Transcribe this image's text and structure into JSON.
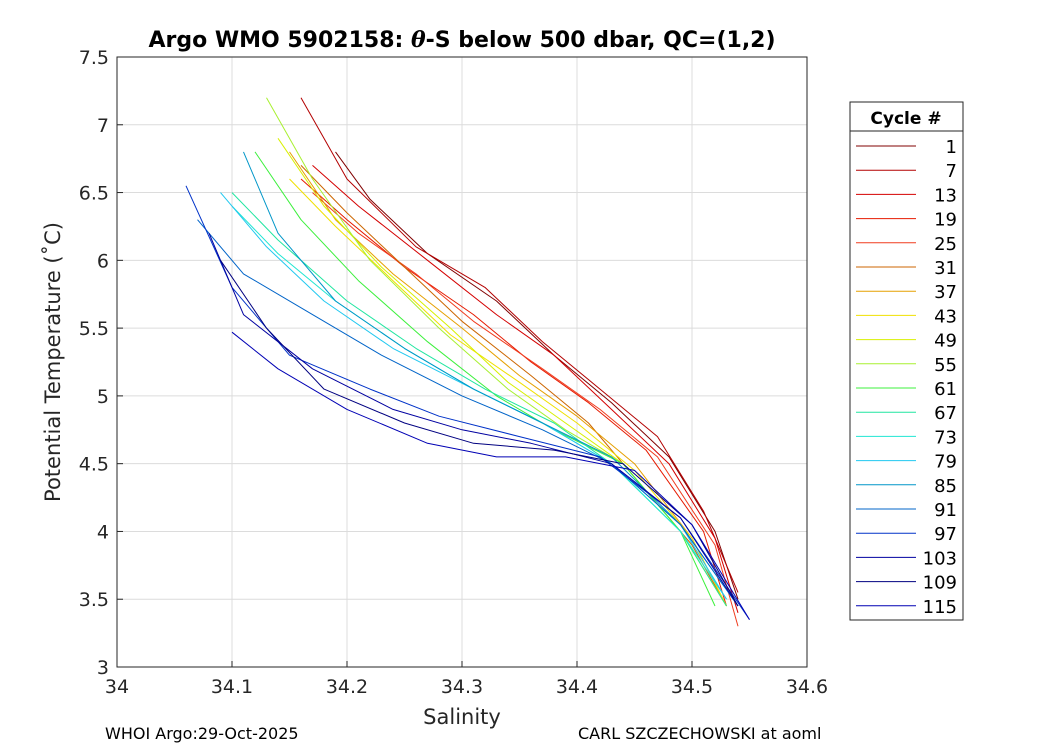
{
  "chart_data": {
    "type": "line",
    "title_prefix": "Argo WMO 5902158: ",
    "title_symbol": "θ",
    "title_suffix": "-S below 500 dbar,  QC=(1,2)",
    "xlabel": "Salinity",
    "ylabel": "Potential Temperature (˚C)",
    "xlim": [
      34,
      34.6
    ],
    "ylim": [
      3,
      7.5
    ],
    "xticks": [
      "34",
      "34.1",
      "34.2",
      "34.3",
      "34.4",
      "34.5",
      "34.6"
    ],
    "yticks": [
      "3",
      "3.5",
      "4",
      "4.5",
      "5",
      "5.5",
      "6",
      "6.5",
      "7",
      "7.5"
    ],
    "grid": true,
    "legend_title": "Cycle #",
    "legend_position": "outside-right",
    "legend": [
      {
        "label": "1",
        "color": "#800000"
      },
      {
        "label": "7",
        "color": "#b30000"
      },
      {
        "label": "13",
        "color": "#d40000"
      },
      {
        "label": "19",
        "color": "#e61a00"
      },
      {
        "label": "25",
        "color": "#f03c1e"
      },
      {
        "label": "31",
        "color": "#cc6600"
      },
      {
        "label": "37",
        "color": "#e6a000"
      },
      {
        "label": "43",
        "color": "#f0e000"
      },
      {
        "label": "49",
        "color": "#d8f000"
      },
      {
        "label": "55",
        "color": "#a8f030"
      },
      {
        "label": "61",
        "color": "#3cf03c"
      },
      {
        "label": "67",
        "color": "#20e6a0"
      },
      {
        "label": "73",
        "color": "#20e6d2"
      },
      {
        "label": "79",
        "color": "#20c8f0"
      },
      {
        "label": "85",
        "color": "#0096c8"
      },
      {
        "label": "91",
        "color": "#0064c8"
      },
      {
        "label": "97",
        "color": "#0032c8"
      },
      {
        "label": "103",
        "color": "#0000a0"
      },
      {
        "label": "109",
        "color": "#000080"
      },
      {
        "label": "115",
        "color": "#0000b4"
      }
    ],
    "series": [
      {
        "name": "1",
        "color": "#800000",
        "x": [
          34.19,
          34.22,
          34.27,
          34.33,
          34.38,
          34.43,
          34.48,
          34.52,
          34.54
        ],
        "y": [
          6.8,
          6.45,
          6.05,
          5.7,
          5.3,
          4.95,
          4.55,
          4.0,
          3.5
        ]
      },
      {
        "name": "7",
        "color": "#b30000",
        "x": [
          34.16,
          34.2,
          34.26,
          34.32,
          34.37,
          34.42,
          34.47,
          34.51,
          34.54
        ],
        "y": [
          7.2,
          6.6,
          6.1,
          5.8,
          5.4,
          5.05,
          4.7,
          4.15,
          3.55
        ]
      },
      {
        "name": "13",
        "color": "#d40000",
        "x": [
          34.17,
          34.21,
          34.27,
          34.33,
          34.38,
          34.43,
          34.48,
          34.52,
          34.54
        ],
        "y": [
          6.7,
          6.4,
          6.0,
          5.6,
          5.3,
          4.9,
          4.5,
          3.95,
          3.4
        ]
      },
      {
        "name": "19",
        "color": "#e61a00",
        "x": [
          34.16,
          34.2,
          34.25,
          34.31,
          34.36,
          34.41,
          34.46,
          34.51,
          34.53
        ],
        "y": [
          6.6,
          6.3,
          5.95,
          5.6,
          5.25,
          4.95,
          4.6,
          4.0,
          3.45
        ]
      },
      {
        "name": "25",
        "color": "#f03c1e",
        "x": [
          34.17,
          34.21,
          34.26,
          34.31,
          34.37,
          34.42,
          34.47,
          34.52,
          34.54
        ],
        "y": [
          6.5,
          6.2,
          5.9,
          5.55,
          5.2,
          4.9,
          4.55,
          3.9,
          3.3
        ]
      },
      {
        "name": "31",
        "color": "#cc6600",
        "x": [
          34.16,
          34.2,
          34.25,
          34.3,
          34.36,
          34.41,
          34.45,
          34.5,
          34.53
        ],
        "y": [
          6.7,
          6.35,
          5.95,
          5.55,
          5.15,
          4.8,
          4.4,
          3.9,
          3.45
        ]
      },
      {
        "name": "37",
        "color": "#e6a000",
        "x": [
          34.15,
          34.19,
          34.24,
          34.3,
          34.35,
          34.4,
          34.45,
          34.5,
          34.53
        ],
        "y": [
          6.8,
          6.3,
          5.9,
          5.5,
          5.15,
          4.85,
          4.5,
          3.95,
          3.45
        ]
      },
      {
        "name": "43",
        "color": "#f0e000",
        "x": [
          34.15,
          34.19,
          34.24,
          34.29,
          34.35,
          34.4,
          34.45,
          34.5,
          34.53
        ],
        "y": [
          6.6,
          6.25,
          5.85,
          5.45,
          5.1,
          4.8,
          4.45,
          3.95,
          3.45
        ]
      },
      {
        "name": "49",
        "color": "#d8f000",
        "x": [
          34.14,
          34.18,
          34.23,
          34.29,
          34.34,
          34.39,
          34.44,
          34.49,
          34.53
        ],
        "y": [
          6.9,
          6.4,
          5.95,
          5.5,
          5.1,
          4.8,
          4.5,
          4.0,
          3.45
        ]
      },
      {
        "name": "55",
        "color": "#a8f030",
        "x": [
          34.13,
          34.17,
          34.22,
          34.28,
          34.34,
          34.39,
          34.44,
          34.49,
          34.53
        ],
        "y": [
          7.2,
          6.6,
          6.0,
          5.5,
          5.05,
          4.75,
          4.5,
          4.0,
          3.45
        ]
      },
      {
        "name": "61",
        "color": "#3cf03c",
        "x": [
          34.12,
          34.16,
          34.21,
          34.27,
          34.33,
          34.38,
          34.44,
          34.49,
          34.52
        ],
        "y": [
          6.8,
          6.3,
          5.85,
          5.4,
          5.0,
          4.75,
          4.5,
          4.0,
          3.45
        ]
      },
      {
        "name": "67",
        "color": "#20e6a0",
        "x": [
          34.1,
          34.14,
          34.2,
          34.26,
          34.32,
          34.38,
          34.43,
          34.49,
          34.53
        ],
        "y": [
          6.5,
          6.15,
          5.7,
          5.35,
          5.05,
          4.8,
          4.5,
          4.0,
          3.45
        ]
      },
      {
        "name": "73",
        "color": "#20e6d2",
        "x": [
          34.1,
          34.14,
          34.19,
          34.25,
          34.31,
          34.37,
          34.43,
          34.49,
          34.53
        ],
        "y": [
          6.4,
          6.05,
          5.7,
          5.35,
          5.05,
          4.8,
          4.5,
          4.0,
          3.5
        ]
      },
      {
        "name": "79",
        "color": "#20c8f0",
        "x": [
          34.09,
          34.13,
          34.18,
          34.24,
          34.31,
          34.37,
          34.43,
          34.49,
          34.53
        ],
        "y": [
          6.5,
          6.1,
          5.7,
          5.35,
          5.05,
          4.8,
          4.5,
          4.05,
          3.5
        ]
      },
      {
        "name": "85",
        "color": "#0096c8",
        "x": [
          34.11,
          34.14,
          34.19,
          34.25,
          34.31,
          34.37,
          34.43,
          34.49,
          34.54
        ],
        "y": [
          6.8,
          6.2,
          5.7,
          5.35,
          5.05,
          4.8,
          4.55,
          4.05,
          3.45
        ]
      },
      {
        "name": "91",
        "color": "#0064c8",
        "x": [
          34.07,
          34.11,
          34.17,
          34.23,
          34.3,
          34.37,
          34.43,
          34.49,
          34.54
        ],
        "y": [
          6.3,
          5.9,
          5.6,
          5.3,
          5.0,
          4.75,
          4.5,
          4.05,
          3.45
        ]
      },
      {
        "name": "97",
        "color": "#0032c8",
        "x": [
          34.06,
          34.1,
          34.15,
          34.22,
          34.28,
          34.35,
          34.42,
          34.49,
          34.55
        ],
        "y": [
          6.55,
          5.8,
          5.3,
          5.05,
          4.85,
          4.7,
          4.55,
          4.1,
          3.35
        ]
      },
      {
        "name": "103",
        "color": "#0000a0",
        "x": [
          34.08,
          34.11,
          34.17,
          34.24,
          34.3,
          34.36,
          34.43,
          34.49,
          34.54
        ],
        "y": [
          6.2,
          5.6,
          5.2,
          4.9,
          4.75,
          4.65,
          4.5,
          4.1,
          3.45
        ]
      },
      {
        "name": "109",
        "color": "#000080",
        "x": [
          34.09,
          34.13,
          34.18,
          34.25,
          34.31,
          34.38,
          34.44,
          34.5,
          34.54
        ],
        "y": [
          6.0,
          5.5,
          5.05,
          4.8,
          4.65,
          4.6,
          4.5,
          4.05,
          3.45
        ]
      },
      {
        "name": "115",
        "color": "#0000b4",
        "x": [
          34.1,
          34.14,
          34.2,
          34.27,
          34.33,
          34.39,
          34.45,
          34.5,
          34.55
        ],
        "y": [
          5.47,
          5.2,
          4.9,
          4.65,
          4.55,
          4.55,
          4.45,
          4.05,
          3.35
        ]
      }
    ]
  },
  "footer": {
    "left": "WHOI Argo:29-Oct-2025",
    "right": "CARL SZCZECHOWSKI at aoml"
  }
}
